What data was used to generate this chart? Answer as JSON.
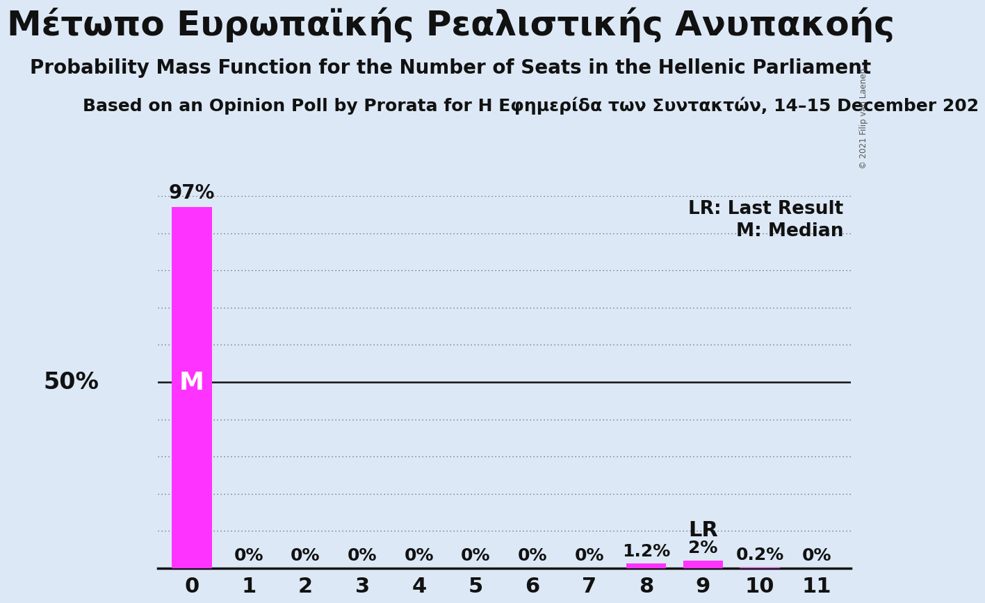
{
  "title": "Μέτωπο Ευρωπαϊκής Ρεαλιστικής Ανυπακοής",
  "subtitle": "Probability Mass Function for the Number of Seats in the Hellenic Parliament",
  "source": "Based on an Opinion Poll by Prorata for Η Εφημερίδα των Συντακτών, 14–15 December 202",
  "copyright": "© 2021 Filip van Laenen",
  "categories": [
    0,
    1,
    2,
    3,
    4,
    5,
    6,
    7,
    8,
    9,
    10,
    11
  ],
  "values": [
    97,
    0,
    0,
    0,
    0,
    0,
    0,
    0,
    1.2,
    2,
    0.2,
    0
  ],
  "bar_color": "#FF33FF",
  "background_color": "#dce8f5",
  "median_seat": 0,
  "lr_seat": 9,
  "legend_lr": "LR: Last Result",
  "legend_m": "M: Median",
  "ylabel_50": "50%",
  "ylim": [
    0,
    100
  ],
  "dotted_yticks": [
    10,
    20,
    30,
    40,
    50,
    60,
    70,
    80,
    90,
    100
  ],
  "solid_ytick": 50,
  "title_fontsize": 36,
  "subtitle_fontsize": 20,
  "source_fontsize": 18,
  "tick_fontsize": 22,
  "pct_label_fontsize": 18,
  "legend_fontsize": 19,
  "ylabel_fontsize": 24,
  "m_label_fontsize": 26,
  "lr_label_fontsize": 22
}
